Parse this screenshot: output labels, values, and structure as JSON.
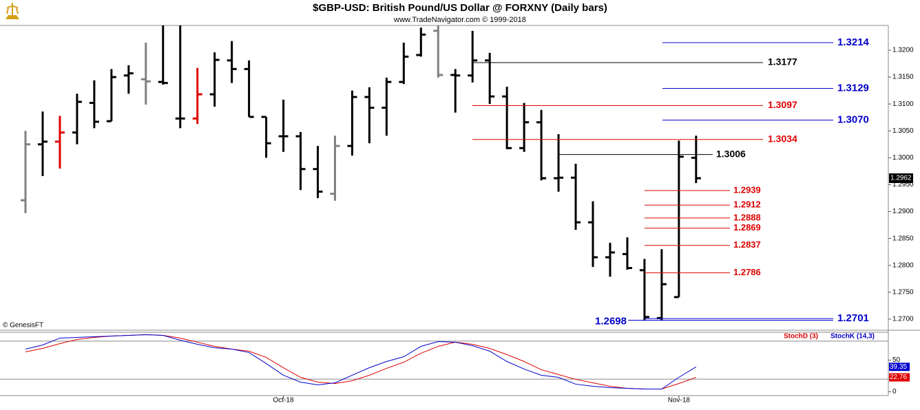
{
  "title": "$GBP-USD:  British Pound/US Dollar @ FORXNY  (Daily bars)",
  "subtitle": "www.TradeNavigator.com © 1999-2018",
  "source": "© GenesisFT",
  "chart_data": [
    {
      "type": "ohlc",
      "categories": [
        null,
        null,
        null,
        null,
        null,
        null,
        null,
        null,
        null,
        null,
        null,
        null,
        null,
        null,
        null,
        "Oct-18",
        null,
        null,
        null,
        null,
        null,
        null,
        null,
        null,
        null,
        null,
        null,
        null,
        null,
        null,
        null,
        null,
        null,
        null,
        null,
        null,
        null,
        null,
        "Nov-18",
        null
      ],
      "open": [
        1.2921,
        1.3025,
        1.303,
        1.3047,
        1.3102,
        1.3068,
        1.3153,
        1.3146,
        1.3141,
        1.3073,
        1.3073,
        1.3118,
        1.3181,
        1.3165,
        1.3076,
        1.304,
        1.304,
        1.2979,
        1.2933,
        1.3022,
        1.3113,
        1.3093,
        1.3141,
        1.3191,
        1.3236,
        1.3154,
        1.3153,
        1.3181,
        1.3114,
        1.3018,
        1.3066,
        1.2962,
        1.2963,
        1.288,
        1.2815,
        1.2821,
        1.2791,
        1.2702,
        1.2741,
        1.3
      ],
      "high": [
        1.305,
        1.3086,
        1.3078,
        1.3119,
        1.3144,
        1.3165,
        1.3172,
        1.3214,
        1.3255,
        1.3255,
        1.3167,
        1.3196,
        1.3217,
        1.3181,
        1.3076,
        1.3108,
        1.3048,
        1.3022,
        1.3041,
        1.3125,
        1.3131,
        1.3149,
        1.3214,
        1.3242,
        1.325,
        1.3165,
        1.3236,
        1.3195,
        1.3132,
        1.3102,
        1.3089,
        1.3044,
        1.2989,
        1.2919,
        1.2842,
        1.2852,
        1.2812,
        1.283,
        1.3032,
        1.3041
      ],
      "low": [
        1.2897,
        1.2966,
        1.298,
        1.3025,
        1.3055,
        1.3068,
        1.3119,
        1.3099,
        1.3136,
        1.3055,
        1.3063,
        1.3095,
        1.3139,
        1.3076,
        1.3,
        1.3011,
        1.294,
        1.2925,
        1.292,
        1.3004,
        1.3027,
        1.3041,
        1.3137,
        1.3188,
        1.3149,
        1.3084,
        1.314,
        1.31,
        1.3016,
        1.3011,
        1.2958,
        1.2937,
        1.2866,
        1.2797,
        1.2779,
        1.2792,
        1.2697,
        1.2697,
        1.2741,
        1.2953
      ],
      "close": [
        1.3025,
        1.303,
        1.3047,
        1.3104,
        1.3067,
        1.315,
        1.3157,
        1.3142,
        1.3139,
        1.3073,
        1.3118,
        1.3182,
        1.3165,
        1.3076,
        1.3027,
        1.304,
        1.2979,
        1.2937,
        1.3022,
        1.3113,
        1.3093,
        1.3141,
        1.3188,
        1.3229,
        1.3154,
        1.3153,
        1.3181,
        1.3114,
        1.3018,
        1.3066,
        1.2962,
        1.2963,
        1.288,
        1.2815,
        1.2824,
        1.2795,
        1.2704,
        1.2765,
        1.3002,
        1.2962
      ],
      "bar_colors": [
        "#808080",
        "#000000",
        "#e00000",
        "#000000",
        "#000000",
        "#000000",
        "#000000",
        "#808080",
        "#000000",
        "#000000",
        "#e00000",
        "#000000",
        "#000000",
        "#000000",
        "#000000",
        "#000000",
        "#000000",
        "#000000",
        "#808080",
        "#000000",
        "#000000",
        "#000000",
        "#000000",
        "#000000",
        "#808080",
        "#000000",
        "#000000",
        "#000000",
        "#000000",
        "#000000",
        "#000000",
        "#000000",
        "#000000",
        "#000000",
        "#000000",
        "#000000",
        "#000000",
        "#000000",
        "#000000",
        "#000000"
      ],
      "ylim": [
        1.2682,
        1.3246
      ],
      "yticks": [
        {
          "value": 1.27,
          "label": "1.2700"
        },
        {
          "value": 1.275,
          "label": "1.2750"
        },
        {
          "value": 1.28,
          "label": "1.2800"
        },
        {
          "value": 1.285,
          "label": "1.2850"
        },
        {
          "value": 1.29,
          "label": "1.2900"
        },
        {
          "value": 1.295,
          "label": "1.2950"
        },
        {
          "value": 1.3,
          "label": "1.3000"
        },
        {
          "value": 1.305,
          "label": "1.3050"
        },
        {
          "value": 1.31,
          "label": "1.3100"
        },
        {
          "value": 1.315,
          "label": "1.3150"
        },
        {
          "value": 1.32,
          "label": "1.3200"
        }
      ],
      "levels": [
        {
          "value": 1.3214,
          "label": "1.3214",
          "color": "#0000cc"
        },
        {
          "value": 1.3177,
          "label": "1.3177",
          "color": "#000000"
        },
        {
          "value": 1.3129,
          "label": "1.3129",
          "color": "#0000cc"
        },
        {
          "value": 1.3097,
          "label": "1.3097",
          "color": "#e00000"
        },
        {
          "value": 1.307,
          "label": "1.3070",
          "color": "#0000cc"
        },
        {
          "value": 1.3034,
          "label": "1.3034",
          "color": "#e00000"
        },
        {
          "value": 1.3006,
          "label": "1.3006",
          "color": "#000000"
        },
        {
          "value": 1.2939,
          "label": "1.2939",
          "color": "#e00000"
        },
        {
          "value": 1.2912,
          "label": "1.2912",
          "color": "#e00000"
        },
        {
          "value": 1.2888,
          "label": "1.2888",
          "color": "#e00000"
        },
        {
          "value": 1.2869,
          "label": "1.2869",
          "color": "#e00000"
        },
        {
          "value": 1.2837,
          "label": "1.2837",
          "color": "#e00000"
        },
        {
          "value": 1.2786,
          "label": "1.2786",
          "color": "#e00000"
        },
        {
          "value": 1.2701,
          "label": "1.2701",
          "color": "#0000cc"
        },
        {
          "value": 1.2698,
          "label": "1.2698",
          "color": "#0000cc"
        }
      ]
    },
    {
      "type": "line",
      "series": [
        {
          "name": "StochD (3)",
          "color": "#e00000",
          "values": [
            63.0,
            68.5,
            76.1,
            82.6,
            85.9,
            88.0,
            89.1,
            90.2,
            89.1,
            84.8,
            78.3,
            71.7,
            67.4,
            64.1,
            54.3,
            38.0,
            22.8,
            15.2,
            13.0,
            17.4,
            26.1,
            37.0,
            46.7,
            60.9,
            71.7,
            78.3,
            75.0,
            68.5,
            58.7,
            47.8,
            34.8,
            27.2,
            19.6,
            14.1,
            8.7,
            5.4,
            4.3,
            4.3,
            13.0,
            22.76
          ]
        },
        {
          "name": "StochK (14,3)",
          "color": "#0000cc",
          "values": [
            67.4,
            73.9,
            84.8,
            85.9,
            87.0,
            88.0,
            89.1,
            90.2,
            89.1,
            81.5,
            75.0,
            69.6,
            67.4,
            62.0,
            44.6,
            26.1,
            15.2,
            10.9,
            14.1,
            26.1,
            38.0,
            47.8,
            55.4,
            71.7,
            79.3,
            78.3,
            72.8,
            64.1,
            47.8,
            35.9,
            26.1,
            22.8,
            12.0,
            8.7,
            6.5,
            5.4,
            4.3,
            4.3,
            22.8,
            39.35
          ]
        }
      ],
      "ylim": [
        -6,
        94
      ],
      "yticks": [
        0,
        50
      ],
      "levels": [
        20,
        80
      ]
    }
  ]
}
